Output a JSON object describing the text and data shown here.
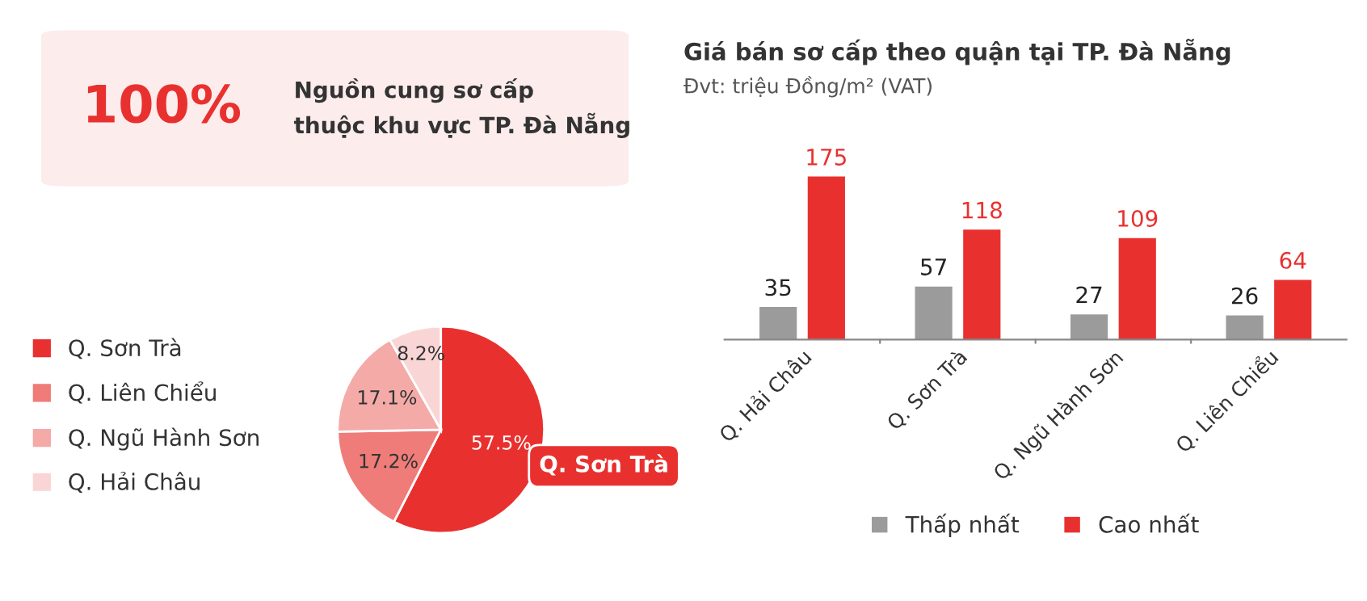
{
  "chart_data": [
    {
      "type": "other",
      "title": "100%",
      "subtitle": "Nguồn cung sơ cấp\nthuộc khu vực TP. Đà Nẵng"
    },
    {
      "type": "pie",
      "categories": [
        "Q. Sơn Trà",
        "Q. Liên Chiểu",
        "Q. Ngũ Hành Sơn",
        "Q. Hải Châu"
      ],
      "values": [
        57.5,
        17.2,
        17.1,
        8.2
      ],
      "colors": [
        "#e8312f",
        "#ef7c78",
        "#f4aaa7",
        "#f9d6d5"
      ],
      "value_labels": [
        "57.5%",
        "17.2%",
        "17.1%",
        "8.2%"
      ],
      "legend": "left",
      "annotations": [
        "Q. Sơn Trà"
      ]
    },
    {
      "type": "bar",
      "title": "Giá bán sơ cấp theo quận tại TP. Đà Nẵng",
      "subtitle": "Đvt: triệu Đồng/m² (VAT)",
      "categories": [
        "Q. Hải Châu",
        "Q. Sơn Trà",
        "Q. Ngũ Hành Sơn",
        "Q. Liên Chiểu"
      ],
      "series": [
        {
          "name": "Thấp nhất",
          "color": "#9b9b9b",
          "values": [
            35,
            57,
            27,
            26
          ]
        },
        {
          "name": "Cao nhất",
          "color": "#e8312f",
          "values": [
            175,
            118,
            109,
            64
          ]
        }
      ],
      "data_labels": true,
      "legend": "bottom",
      "grid": false
    }
  ]
}
